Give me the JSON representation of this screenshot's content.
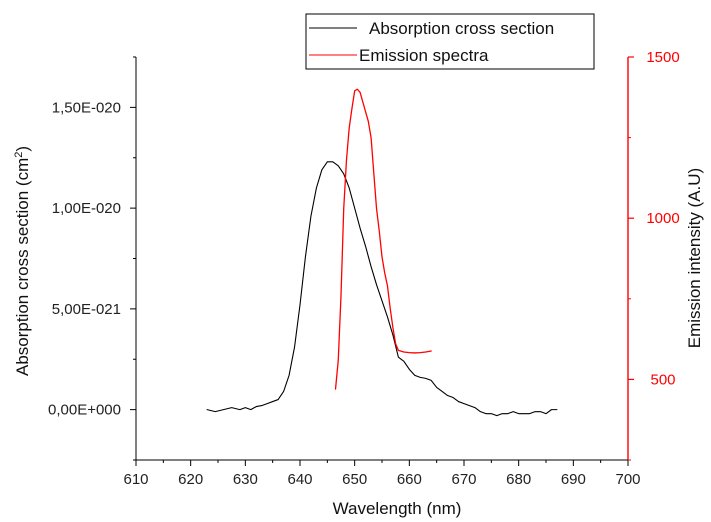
{
  "colors": {
    "absorption": "#000000",
    "emission": "#ff0000",
    "axis": "#000000",
    "right_axis": "#ff0000"
  },
  "chart_data": {
    "type": "line",
    "xlabel": "Wavelength (nm)",
    "ylabel": {
      "main": "Absorption cross section (cm",
      "superscript": "2",
      "suffix": ")"
    },
    "y2label": "Emission intensity (A.U)",
    "xlim": [
      610,
      700
    ],
    "ylim": [
      -2.5e-21,
      1.75e-20
    ],
    "y2lim": [
      250,
      1500
    ],
    "xticks": [
      610,
      620,
      630,
      640,
      650,
      660,
      670,
      680,
      690,
      700
    ],
    "yticks": [
      0,
      5e-21,
      1e-20,
      1.5e-20
    ],
    "ytick_labels": [
      "0,00E+000",
      "5,00E-021",
      "1,00E-020",
      "1,50E-020"
    ],
    "y2ticks": [
      500,
      1000,
      1500
    ],
    "legend": {
      "position": "top-right",
      "entries": [
        "Absorption cross section",
        "Emission spectra"
      ]
    },
    "series": [
      {
        "name": "Absorption cross section",
        "axis": "left",
        "color": "#000000",
        "x": [
          623,
          624.5,
          626,
          627.5,
          629,
          630,
          631,
          632,
          633,
          634,
          635,
          636,
          637,
          638,
          639,
          640,
          641,
          642,
          643,
          644,
          645,
          646,
          647,
          648,
          649,
          650,
          651,
          652,
          653,
          654,
          655,
          656,
          657,
          658,
          659,
          660,
          661,
          662,
          663,
          664,
          665,
          666,
          667,
          668,
          669,
          670,
          671,
          672,
          673,
          674,
          675,
          676,
          677,
          678,
          679,
          680,
          681,
          682,
          683,
          684,
          685,
          686,
          687
        ],
        "y": [
          0,
          -1e-22,
          0,
          1e-22,
          0,
          1e-22,
          0,
          1.5e-22,
          2e-22,
          3e-22,
          4e-22,
          5e-22,
          9e-22,
          1.7e-21,
          3.1e-21,
          5.2e-21,
          7.6e-21,
          9.6e-21,
          1.1e-20,
          1.19e-20,
          1.23e-20,
          1.23e-20,
          1.21e-20,
          1.17e-20,
          1.1e-20,
          1e-20,
          9e-21,
          8.1e-21,
          7.1e-21,
          6.2e-21,
          5.4e-21,
          4.6e-21,
          3.7e-21,
          2.6e-21,
          2.4e-21,
          2e-21,
          1.7e-21,
          1.6e-21,
          1.55e-21,
          1.45e-21,
          1.1e-21,
          9e-22,
          7e-22,
          6e-22,
          4e-22,
          3e-22,
          2e-22,
          1e-22,
          -1e-22,
          -2e-22,
          -2e-22,
          -3e-22,
          -2e-22,
          -2e-22,
          -1e-22,
          -2e-22,
          -2e-22,
          -2e-22,
          -1e-22,
          -1e-22,
          -2e-22,
          0,
          0
        ]
      },
      {
        "name": "Emission spectra",
        "axis": "right",
        "color": "#ff0000",
        "x": [
          646.5,
          647,
          647.5,
          648,
          648.5,
          649,
          649.5,
          650,
          650.5,
          651,
          651.5,
          652,
          652.5,
          653,
          653.5,
          654,
          654.5,
          655,
          655.5,
          656,
          656.5,
          657,
          657.5,
          658,
          659,
          660,
          661,
          662,
          663,
          664
        ],
        "y": [
          470,
          560,
          760,
          1030,
          1180,
          1280,
          1340,
          1395,
          1400,
          1390,
          1360,
          1330,
          1300,
          1250,
          1140,
          1030,
          960,
          880,
          830,
          790,
          720,
          660,
          610,
          590,
          585,
          583,
          582,
          583,
          585,
          588
        ]
      }
    ]
  }
}
